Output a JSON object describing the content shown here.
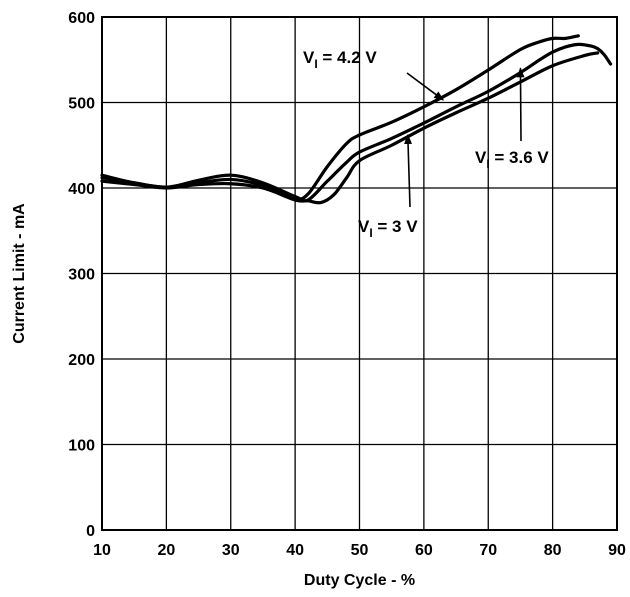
{
  "chart_data": {
    "type": "line",
    "xlabel": "Duty Cycle - %",
    "ylabel": "Current Limit - mA",
    "xlim": [
      10,
      90
    ],
    "ylim": [
      0,
      600
    ],
    "x_ticks": [
      10,
      20,
      30,
      40,
      50,
      60,
      70,
      80,
      90
    ],
    "y_ticks": [
      0,
      100,
      200,
      300,
      400,
      500,
      600
    ],
    "grid": true,
    "legend": "none",
    "line_color": "#000000",
    "series": [
      {
        "name": "VI = 4.2 V",
        "x": [
          10,
          15,
          20,
          25,
          30,
          35,
          40,
          42,
          45,
          48,
          50,
          55,
          60,
          65,
          70,
          75,
          78,
          80,
          82,
          84
        ],
        "y": [
          415,
          406,
          401,
          406,
          410,
          403,
          388,
          393,
          425,
          452,
          462,
          477,
          495,
          515,
          538,
          562,
          571,
          575,
          575,
          578
        ]
      },
      {
        "name": "VI = 3.6 V",
        "x": [
          10,
          15,
          20,
          25,
          30,
          35,
          40,
          42,
          45,
          48,
          50,
          55,
          60,
          65,
          70,
          75,
          78,
          80,
          82,
          84,
          86,
          87,
          88,
          89
        ],
        "y": [
          412,
          406,
          401,
          409,
          415,
          406,
          390,
          386,
          408,
          430,
          442,
          458,
          476,
          495,
          513,
          535,
          550,
          559,
          565,
          568,
          566,
          563,
          556,
          545
        ]
      },
      {
        "name": "VI = 3 V",
        "x": [
          10,
          15,
          20,
          25,
          30,
          35,
          40,
          42,
          44,
          46,
          48,
          50,
          55,
          60,
          65,
          70,
          75,
          80,
          85,
          87
        ],
        "y": [
          408,
          404,
          400,
          404,
          405,
          400,
          386,
          385,
          383,
          392,
          412,
          432,
          450,
          470,
          488,
          505,
          524,
          543,
          555,
          558
        ]
      }
    ],
    "annotations": [
      {
        "label": "V",
        "sub": "I",
        "rest": " = 4.2 V",
        "target_x": 63,
        "target_y": 503
      },
      {
        "label": "V",
        "sub": "I",
        "rest": " = 3.6 V",
        "target_x": 75,
        "target_y": 540
      },
      {
        "label": "V",
        "sub": "I",
        "rest": " = 3 V",
        "target_x": 57.5,
        "target_y": 462
      }
    ]
  }
}
